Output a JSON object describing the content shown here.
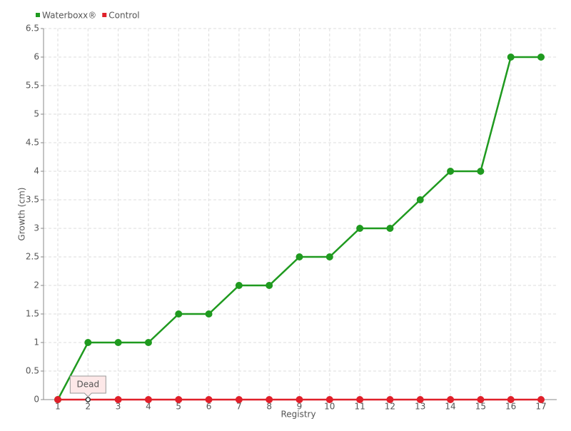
{
  "chart_data": {
    "type": "line",
    "categories": [
      "1",
      "2",
      "3",
      "4",
      "5",
      "6",
      "7",
      "8",
      "9",
      "10",
      "11",
      "12",
      "13",
      "14",
      "15",
      "16",
      "17"
    ],
    "series": [
      {
        "name": "Waterboxx®",
        "color": "#1f9a1f",
        "values": [
          0,
          1,
          1,
          1,
          1.5,
          1.5,
          2,
          2,
          2.5,
          2.5,
          3,
          3,
          3.5,
          4,
          4,
          6,
          6
        ]
      },
      {
        "name": "Control",
        "color": "#e0202a",
        "values": [
          0,
          0,
          0,
          0,
          0,
          0,
          0,
          0,
          0,
          0,
          0,
          0,
          0,
          0,
          0,
          0,
          0
        ]
      }
    ],
    "ylim": [
      0,
      6.5
    ],
    "yticks": [
      0,
      0.5,
      1,
      1.5,
      2,
      2.5,
      3,
      3.5,
      4,
      4.5,
      5,
      5.5,
      6,
      6.5
    ],
    "x_label": "Registry",
    "y_label": "Growth (cm)",
    "grid": true,
    "annotation": "Dead"
  }
}
